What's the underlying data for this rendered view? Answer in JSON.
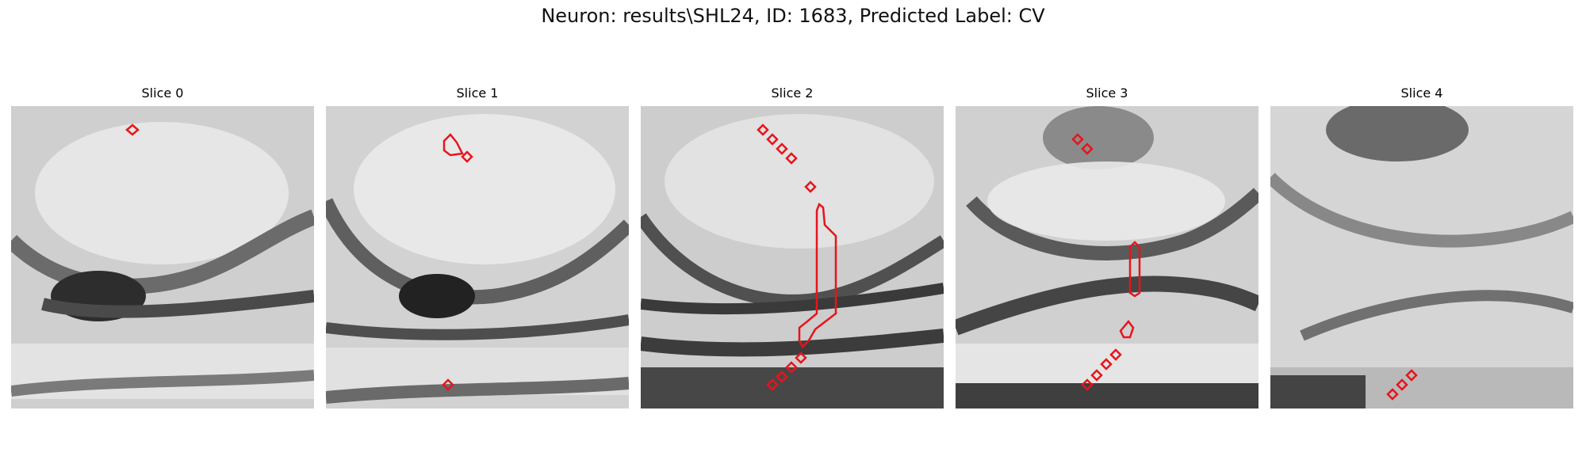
{
  "figure": {
    "title": "Neuron: results\\SHL24, ID: 1683, Predicted Label: CV"
  },
  "panels": [
    {
      "title": "Slice 0"
    },
    {
      "title": "Slice 1"
    },
    {
      "title": "Slice 2"
    },
    {
      "title": "Slice 3"
    },
    {
      "title": "Slice 4"
    }
  ],
  "colors": {
    "contour": "#e8141b",
    "background": "#ffffff"
  }
}
